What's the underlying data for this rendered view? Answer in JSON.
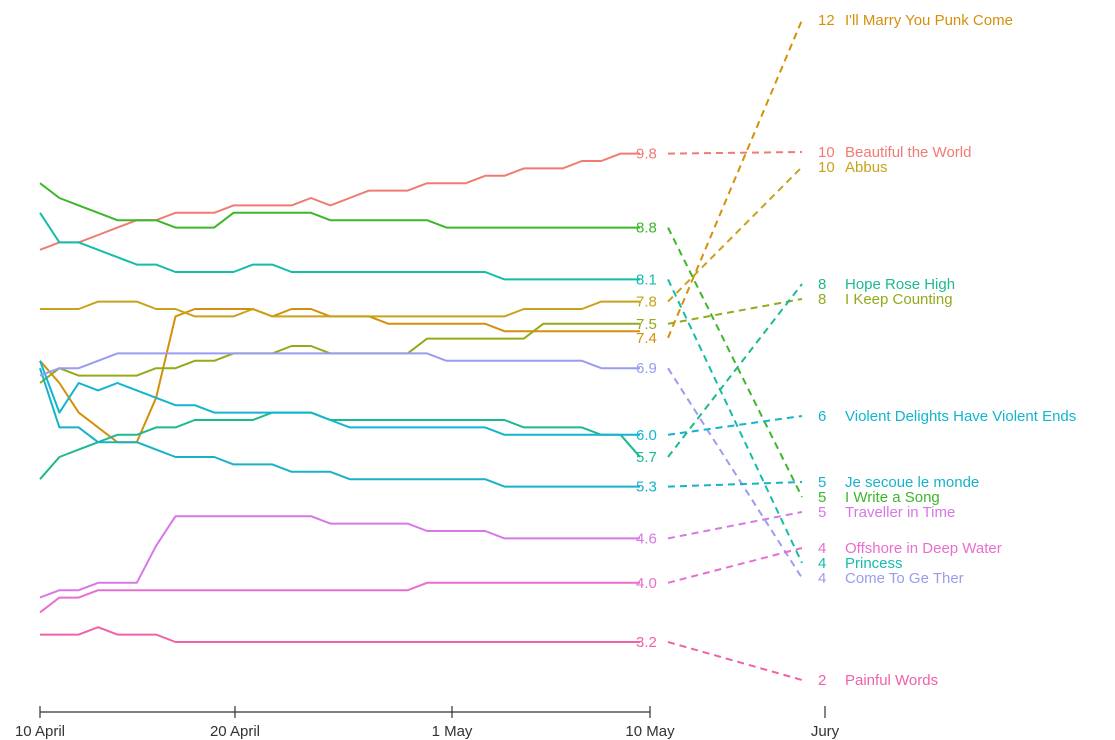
{
  "chart_data": {
    "type": "line",
    "x_axis": {
      "ticks": [
        "10 April",
        "20 April",
        "1 May",
        "10 May"
      ],
      "jury_label": "Jury"
    },
    "grid": false,
    "legend": "none (direct labels at line ends and jury column)",
    "series": [
      {
        "name": "I'll Marry You Punk Come",
        "color": "#D4900A",
        "values": [
          7.0,
          6.7,
          6.3,
          6.1,
          5.9,
          5.9,
          6.5,
          7.6,
          7.7,
          7.7,
          7.7,
          7.7,
          7.6,
          7.7,
          7.7,
          7.6,
          7.6,
          7.6,
          7.5,
          7.5,
          7.5,
          7.5,
          7.5,
          7.5,
          7.4,
          7.4,
          7.4,
          7.4,
          7.4,
          7.4,
          7.4,
          7.4
        ],
        "end_label": "7.4",
        "jury_score": 12,
        "jury_score_label": "12"
      },
      {
        "name": "Beautiful the World",
        "color": "#F07B72",
        "values": [
          8.5,
          8.6,
          8.6,
          8.7,
          8.8,
          8.9,
          8.9,
          9.0,
          9.0,
          9.0,
          9.1,
          9.1,
          9.1,
          9.1,
          9.2,
          9.1,
          9.2,
          9.3,
          9.3,
          9.3,
          9.4,
          9.4,
          9.4,
          9.5,
          9.5,
          9.6,
          9.6,
          9.6,
          9.7,
          9.7,
          9.8,
          9.8
        ],
        "end_label": "9.8",
        "jury_score": 10,
        "jury_score_label": "10"
      },
      {
        "name": "Abbus",
        "color": "#C8A21A",
        "values": [
          7.7,
          7.7,
          7.7,
          7.8,
          7.8,
          7.8,
          7.7,
          7.7,
          7.6,
          7.6,
          7.6,
          7.7,
          7.6,
          7.6,
          7.6,
          7.6,
          7.6,
          7.6,
          7.6,
          7.6,
          7.6,
          7.6,
          7.6,
          7.6,
          7.6,
          7.7,
          7.7,
          7.7,
          7.7,
          7.8,
          7.8,
          7.8
        ],
        "end_label": "7.8",
        "jury_score": 10,
        "jury_score_label": "10"
      },
      {
        "name": "Hope Rose High",
        "color": "#1DB98F",
        "values": [
          5.4,
          5.7,
          5.8,
          5.9,
          6.0,
          6.0,
          6.1,
          6.1,
          6.2,
          6.2,
          6.2,
          6.2,
          6.3,
          6.3,
          6.3,
          6.2,
          6.2,
          6.2,
          6.2,
          6.2,
          6.2,
          6.2,
          6.2,
          6.2,
          6.2,
          6.1,
          6.1,
          6.1,
          6.1,
          6.0,
          6.0,
          5.7
        ],
        "end_label": "5.7",
        "jury_score": 8,
        "jury_score_label": "8"
      },
      {
        "name": "I Keep Counting",
        "color": "#93AA1A",
        "values": [
          6.7,
          6.9,
          6.8,
          6.8,
          6.8,
          6.8,
          6.9,
          6.9,
          7.0,
          7.0,
          7.1,
          7.1,
          7.1,
          7.2,
          7.2,
          7.1,
          7.1,
          7.1,
          7.1,
          7.1,
          7.3,
          7.3,
          7.3,
          7.3,
          7.3,
          7.3,
          7.5,
          7.5,
          7.5,
          7.5,
          7.5,
          7.5
        ],
        "end_label": "7.5",
        "jury_score": 8,
        "jury_score_label": "8"
      },
      {
        "name": "Violent Delights Have Violent Ends",
        "color": "#12B4D0",
        "values": [
          7.0,
          6.3,
          6.7,
          6.6,
          6.7,
          6.6,
          6.5,
          6.4,
          6.4,
          6.3,
          6.3,
          6.3,
          6.3,
          6.3,
          6.3,
          6.2,
          6.1,
          6.1,
          6.1,
          6.1,
          6.1,
          6.1,
          6.1,
          6.1,
          6.0,
          6.0,
          6.0,
          6.0,
          6.0,
          6.0,
          6.0,
          6.0
        ],
        "end_label": "6.0",
        "jury_score": 6,
        "jury_score_label": "6"
      },
      {
        "name": "Je secoue le monde",
        "color": "#18B2C8",
        "values": [
          6.9,
          6.1,
          6.1,
          5.9,
          5.9,
          5.9,
          5.8,
          5.7,
          5.7,
          5.7,
          5.6,
          5.6,
          5.6,
          5.5,
          5.5,
          5.5,
          5.4,
          5.4,
          5.4,
          5.4,
          5.4,
          5.4,
          5.4,
          5.4,
          5.3,
          5.3,
          5.3,
          5.3,
          5.3,
          5.3,
          5.3,
          5.3
        ],
        "end_label": "5.3",
        "jury_score": 5,
        "jury_score_label": "5"
      },
      {
        "name": "Offshore in Deep Water",
        "color": "#E86ED0",
        "values": [
          3.6,
          3.8,
          3.8,
          3.9,
          3.9,
          3.9,
          3.9,
          3.9,
          3.9,
          3.9,
          3.9,
          3.9,
          3.9,
          3.9,
          3.9,
          3.9,
          3.9,
          3.9,
          3.9,
          3.9,
          4.0,
          4.0,
          4.0,
          4.0,
          4.0,
          4.0,
          4.0,
          4.0,
          4.0,
          4.0,
          4.0,
          4.0
        ],
        "end_label": "4.0",
        "jury_score": 4,
        "jury_score_label": "4"
      },
      {
        "name": "I Write a Song",
        "color": "#3DB62A",
        "values": [
          9.4,
          9.2,
          9.1,
          9.0,
          8.9,
          8.9,
          8.9,
          8.8,
          8.8,
          8.8,
          9.0,
          9.0,
          9.0,
          9.0,
          9.0,
          8.9,
          8.9,
          8.9,
          8.9,
          8.9,
          8.9,
          8.8,
          8.8,
          8.8,
          8.8,
          8.8,
          8.8,
          8.8,
          8.8,
          8.8,
          8.8,
          8.8
        ],
        "end_label": "8.8",
        "jury_score": 5,
        "jury_score_label": "5"
      },
      {
        "name": "Traveller in Time",
        "color": "#D877E8",
        "values": [
          3.8,
          3.9,
          3.9,
          4.0,
          4.0,
          4.0,
          4.5,
          4.9,
          4.9,
          4.9,
          4.9,
          4.9,
          4.9,
          4.9,
          4.9,
          4.8,
          4.8,
          4.8,
          4.8,
          4.8,
          4.7,
          4.7,
          4.7,
          4.7,
          4.6,
          4.6,
          4.6,
          4.6,
          4.6,
          4.6,
          4.6,
          4.6
        ],
        "end_label": "4.6",
        "jury_score": 5,
        "jury_score_label": "5"
      },
      {
        "name": "Princess",
        "color": "#14BCAA",
        "values": [
          9.0,
          8.6,
          8.6,
          8.5,
          8.4,
          8.3,
          8.3,
          8.2,
          8.2,
          8.2,
          8.2,
          8.3,
          8.3,
          8.2,
          8.2,
          8.2,
          8.2,
          8.2,
          8.2,
          8.2,
          8.2,
          8.2,
          8.2,
          8.2,
          8.1,
          8.1,
          8.1,
          8.1,
          8.1,
          8.1,
          8.1,
          8.1
        ],
        "end_label": "8.1",
        "jury_score": 4,
        "jury_score_label": "4"
      },
      {
        "name": "Come To Ge Ther",
        "color": "#9A9CF0",
        "values": [
          6.8,
          6.9,
          6.9,
          7.0,
          7.1,
          7.1,
          7.1,
          7.1,
          7.1,
          7.1,
          7.1,
          7.1,
          7.1,
          7.1,
          7.1,
          7.1,
          7.1,
          7.1,
          7.1,
          7.1,
          7.1,
          7.0,
          7.0,
          7.0,
          7.0,
          7.0,
          7.0,
          7.0,
          7.0,
          6.9,
          6.9,
          6.9
        ],
        "end_label": "6.9",
        "jury_score": 4,
        "jury_score_label": "4"
      },
      {
        "name": "Painful Words",
        "color": "#F061A8",
        "values": [
          3.3,
          3.3,
          3.3,
          3.4,
          3.3,
          3.3,
          3.3,
          3.2,
          3.2,
          3.2,
          3.2,
          3.2,
          3.2,
          3.2,
          3.2,
          3.2,
          3.2,
          3.2,
          3.2,
          3.2,
          3.2,
          3.2,
          3.2,
          3.2,
          3.2,
          3.2,
          3.2,
          3.2,
          3.2,
          3.2,
          3.2,
          3.2
        ],
        "end_label": "3.2",
        "jury_score": 2,
        "jury_score_label": "2"
      }
    ]
  }
}
